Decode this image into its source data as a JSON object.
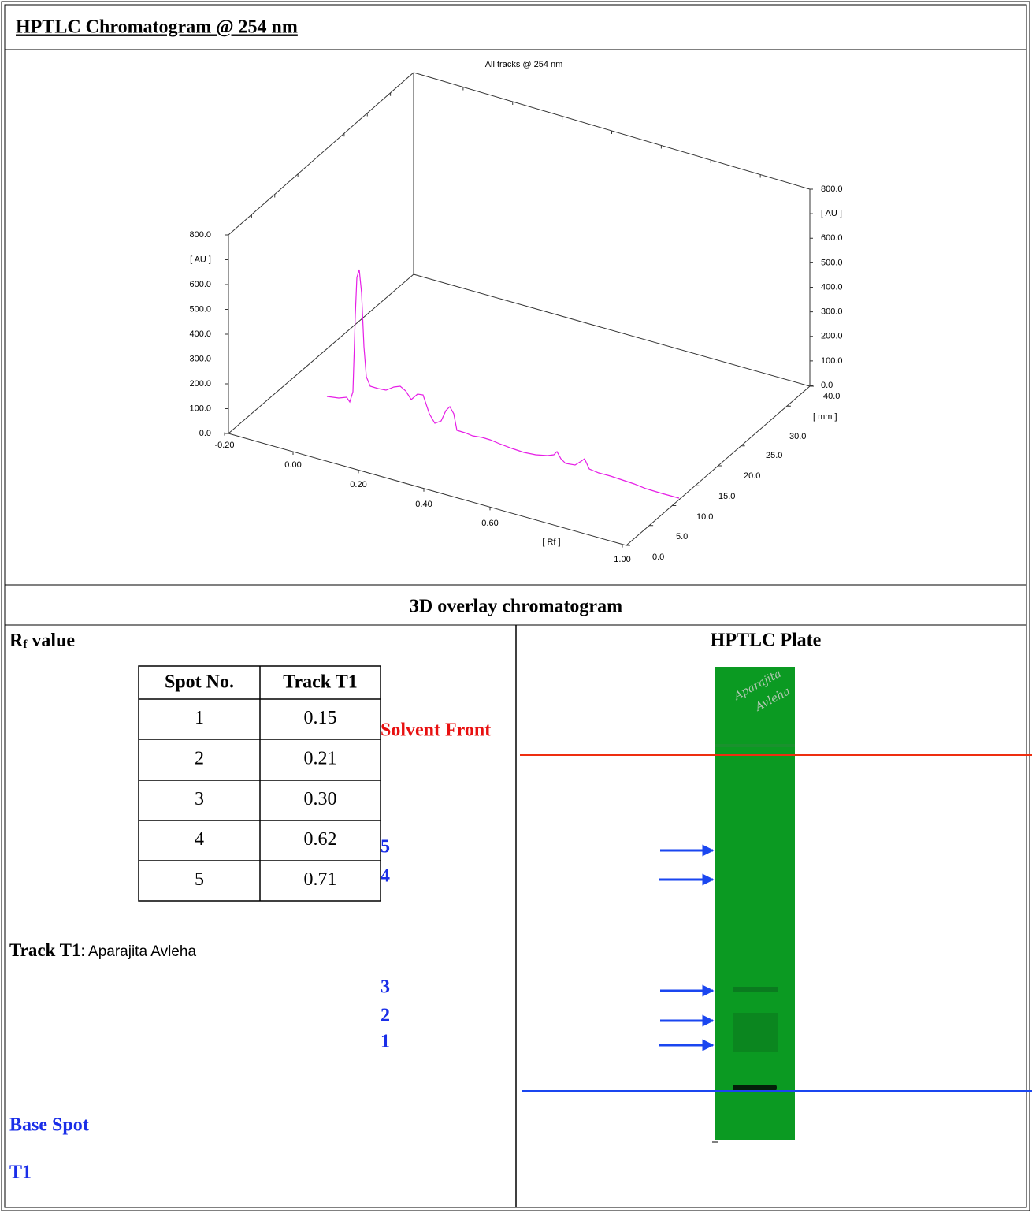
{
  "header": {
    "title": "HPTLC Chromatogram @ 254 nm"
  },
  "chromatogram": {
    "title": "All tracks @ 254 nm",
    "left_axis": {
      "labels": [
        "800.0",
        "[ AU ]",
        "600.0",
        "500.0",
        "400.0",
        "300.0",
        "200.0",
        "100.0",
        "0.0"
      ]
    },
    "right_axis": {
      "labels": [
        "800.0",
        "[ AU ]",
        "600.0",
        "500.0",
        "400.0",
        "300.0",
        "200.0",
        "100.0",
        "0.0"
      ]
    },
    "rf_axis": {
      "labels": [
        "-0.20",
        "0.00",
        "0.20",
        "0.40",
        "0.60",
        "[ Rf ]",
        "1.00"
      ]
    },
    "mm_axis": {
      "labels": [
        "0.0",
        "5.0",
        "10.0",
        "15.0",
        "20.0",
        "25.0",
        "30.0",
        "[ mm ]",
        "40.0"
      ]
    }
  },
  "caption": "3D overlay chromatogram",
  "rf_section": {
    "heading": {
      "main": "R",
      "sub": "f",
      "rest": "value"
    },
    "table": {
      "header": [
        "Spot No.",
        "Track T1"
      ],
      "rows": [
        [
          "1",
          "0.15"
        ],
        [
          "2",
          "0.21"
        ],
        [
          "3",
          "0.30"
        ],
        [
          "4",
          "0.62"
        ],
        [
          "5",
          "0.71"
        ]
      ]
    },
    "track_label": "Track T1",
    "track_desc": ": Aparajita Avleha",
    "base_spot": "Base Spot",
    "track_id": "T1"
  },
  "plate": {
    "title": "HPTLC Plate",
    "solvent_front": "Solvent Front",
    "spot_labels": [
      "5",
      "4",
      "3",
      "2",
      "1"
    ],
    "plate_writing": [
      "Aparajita",
      "Avleha"
    ]
  }
}
